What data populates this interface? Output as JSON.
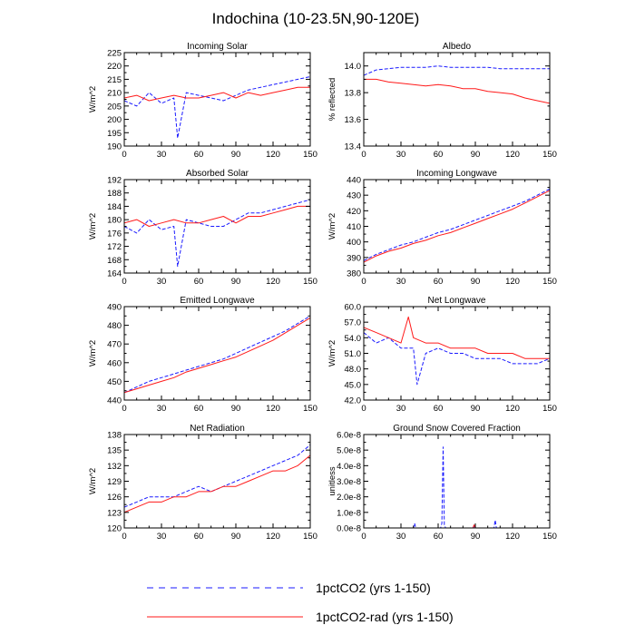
{
  "figure": {
    "title": "Indochina (10-23.5N,90-120E)"
  },
  "legend": [
    {
      "label": "1pctCO2 (yrs 1-150)",
      "color": "#1a1aff",
      "style": "dashed"
    },
    {
      "label": "1pctCO2-rad (yrs 1-150)",
      "color": "#ff1a1a",
      "style": "solid"
    }
  ],
  "chart_data": [
    {
      "type": "line",
      "title": "Incoming Solar",
      "ylabel": "W/m^2",
      "xlim": [
        0,
        150
      ],
      "ylim": [
        190,
        225
      ],
      "xticks": [
        0,
        30,
        60,
        90,
        120,
        150
      ],
      "yticks": [
        190,
        195,
        200,
        205,
        210,
        215,
        220,
        225
      ],
      "ytick_labels": [
        "190",
        "195",
        "200",
        "205",
        "210",
        "215",
        "220",
        "225"
      ],
      "series": [
        {
          "name": "1pctCO2 (yrs 1-150)",
          "x": [
            0,
            10,
            20,
            30,
            40,
            43,
            50,
            60,
            70,
            80,
            90,
            100,
            110,
            120,
            130,
            140,
            150
          ],
          "values": [
            207,
            205,
            210,
            206,
            208,
            193,
            210,
            209,
            208,
            207,
            209,
            211,
            212,
            213,
            214,
            215,
            216
          ]
        },
        {
          "name": "1pctCO2-rad (yrs 1-150)",
          "x": [
            0,
            10,
            20,
            30,
            40,
            50,
            60,
            70,
            80,
            90,
            100,
            110,
            120,
            130,
            140,
            150
          ],
          "values": [
            208,
            209,
            207,
            208,
            209,
            208,
            208,
            209,
            210,
            208,
            210,
            209,
            210,
            211,
            212,
            212
          ]
        }
      ]
    },
    {
      "type": "line",
      "title": "Albedo",
      "ylabel": "% reflected",
      "xlim": [
        0,
        150
      ],
      "ylim": [
        13.4,
        14.1
      ],
      "xticks": [
        0,
        30,
        60,
        90,
        120,
        150
      ],
      "yticks": [
        13.4,
        13.6,
        13.8,
        14.0
      ],
      "ytick_labels": [
        "13.4",
        "13.6",
        "13.8",
        "14.0"
      ],
      "series": [
        {
          "name": "1pctCO2 (yrs 1-150)",
          "x": [
            0,
            10,
            20,
            30,
            40,
            50,
            60,
            70,
            80,
            90,
            100,
            110,
            120,
            130,
            140,
            150
          ],
          "values": [
            13.93,
            13.97,
            13.98,
            13.99,
            13.99,
            13.99,
            14.0,
            13.99,
            13.99,
            13.99,
            13.99,
            13.98,
            13.98,
            13.98,
            13.98,
            13.98
          ]
        },
        {
          "name": "1pctCO2-rad (yrs 1-150)",
          "x": [
            0,
            10,
            20,
            30,
            40,
            50,
            60,
            70,
            80,
            90,
            100,
            110,
            120,
            130,
            140,
            150
          ],
          "values": [
            13.9,
            13.9,
            13.88,
            13.87,
            13.86,
            13.85,
            13.86,
            13.85,
            13.83,
            13.83,
            13.81,
            13.8,
            13.79,
            13.76,
            13.74,
            13.72
          ]
        }
      ]
    },
    {
      "type": "line",
      "title": "Absorbed Solar",
      "ylabel": "W/m^2",
      "xlim": [
        0,
        150
      ],
      "ylim": [
        164,
        192
      ],
      "xticks": [
        0,
        30,
        60,
        90,
        120,
        150
      ],
      "yticks": [
        164,
        168,
        172,
        176,
        180,
        184,
        188,
        192
      ],
      "ytick_labels": [
        "164",
        "168",
        "172",
        "176",
        "180",
        "184",
        "188",
        "192"
      ],
      "series": [
        {
          "name": "1pctCO2 (yrs 1-150)",
          "x": [
            0,
            10,
            20,
            30,
            40,
            43,
            50,
            60,
            70,
            80,
            90,
            100,
            110,
            120,
            130,
            140,
            150
          ],
          "values": [
            178,
            176,
            180,
            177,
            178,
            166,
            180,
            179,
            178,
            178,
            180,
            182,
            182,
            183,
            184,
            185,
            186
          ]
        },
        {
          "name": "1pctCO2-rad (yrs 1-150)",
          "x": [
            0,
            10,
            20,
            30,
            40,
            50,
            60,
            70,
            80,
            90,
            100,
            110,
            120,
            130,
            140,
            150
          ],
          "values": [
            179,
            180,
            178,
            179,
            180,
            179,
            179,
            180,
            181,
            179,
            181,
            181,
            182,
            183,
            184,
            184
          ]
        }
      ]
    },
    {
      "type": "line",
      "title": "Incoming Longwave",
      "ylabel": "W/m^2",
      "xlim": [
        0,
        150
      ],
      "ylim": [
        380,
        440
      ],
      "xticks": [
        0,
        30,
        60,
        90,
        120,
        150
      ],
      "yticks": [
        380,
        390,
        400,
        410,
        420,
        430,
        440
      ],
      "ytick_labels": [
        "380",
        "390",
        "400",
        "410",
        "420",
        "430",
        "440"
      ],
      "series": [
        {
          "name": "1pctCO2 (yrs 1-150)",
          "x": [
            0,
            10,
            20,
            30,
            40,
            50,
            60,
            70,
            80,
            90,
            100,
            110,
            120,
            130,
            140,
            150
          ],
          "values": [
            388,
            392,
            395,
            398,
            400,
            403,
            406,
            408,
            411,
            414,
            417,
            420,
            423,
            426,
            430,
            434
          ]
        },
        {
          "name": "1pctCO2-rad (yrs 1-150)",
          "x": [
            0,
            10,
            20,
            30,
            40,
            50,
            60,
            70,
            80,
            90,
            100,
            110,
            120,
            130,
            140,
            150
          ],
          "values": [
            387,
            391,
            394,
            396,
            399,
            401,
            404,
            406,
            409,
            412,
            415,
            418,
            421,
            425,
            429,
            433
          ]
        }
      ]
    },
    {
      "type": "line",
      "title": "Emitted Longwave",
      "ylabel": "W/m^2",
      "xlim": [
        0,
        150
      ],
      "ylim": [
        440,
        490
      ],
      "xticks": [
        0,
        30,
        60,
        90,
        120,
        150
      ],
      "yticks": [
        440,
        450,
        460,
        470,
        480,
        490
      ],
      "ytick_labels": [
        "440",
        "450",
        "460",
        "470",
        "480",
        "490"
      ],
      "series": [
        {
          "name": "1pctCO2 (yrs 1-150)",
          "x": [
            0,
            10,
            20,
            30,
            40,
            50,
            60,
            70,
            80,
            90,
            100,
            110,
            120,
            130,
            140,
            150
          ],
          "values": [
            444,
            447,
            450,
            452,
            454,
            456,
            458,
            460,
            462,
            465,
            468,
            471,
            474,
            477,
            481,
            485
          ]
        },
        {
          "name": "1pctCO2-rad (yrs 1-150)",
          "x": [
            0,
            10,
            20,
            30,
            40,
            50,
            60,
            70,
            80,
            90,
            100,
            110,
            120,
            130,
            140,
            150
          ],
          "values": [
            444,
            446,
            448,
            450,
            452,
            455,
            457,
            459,
            461,
            463,
            466,
            469,
            472,
            476,
            480,
            484
          ]
        }
      ]
    },
    {
      "type": "line",
      "title": "Net Longwave",
      "ylabel": "W/m^2",
      "xlim": [
        0,
        150
      ],
      "ylim": [
        42,
        60
      ],
      "xticks": [
        0,
        30,
        60,
        90,
        120,
        150
      ],
      "yticks": [
        42,
        45,
        48,
        51,
        54,
        57,
        60
      ],
      "ytick_labels": [
        "42.0",
        "45.0",
        "48.0",
        "51.0",
        "54.0",
        "57.0",
        "60.0"
      ],
      "series": [
        {
          "name": "1pctCO2 (yrs 1-150)",
          "x": [
            0,
            10,
            20,
            30,
            40,
            43,
            50,
            60,
            70,
            80,
            90,
            100,
            110,
            120,
            130,
            140,
            150
          ],
          "values": [
            55,
            53,
            54,
            52,
            52,
            45,
            51,
            52,
            51,
            51,
            50,
            50,
            50,
            49,
            49,
            49,
            50
          ]
        },
        {
          "name": "1pctCO2-rad (yrs 1-150)",
          "x": [
            0,
            10,
            20,
            30,
            36,
            40,
            50,
            60,
            70,
            80,
            90,
            100,
            110,
            120,
            130,
            140,
            150
          ],
          "values": [
            56,
            55,
            54,
            53,
            58,
            54,
            53,
            53,
            52,
            52,
            52,
            51,
            51,
            51,
            50,
            50,
            50
          ]
        }
      ]
    },
    {
      "type": "line",
      "title": "Net Radiation",
      "ylabel": "W/m^2",
      "xlim": [
        0,
        150
      ],
      "ylim": [
        120,
        138
      ],
      "xticks": [
        0,
        30,
        60,
        90,
        120,
        150
      ],
      "yticks": [
        120,
        123,
        126,
        129,
        132,
        135,
        138
      ],
      "ytick_labels": [
        "120",
        "123",
        "126",
        "129",
        "132",
        "135",
        "138"
      ],
      "series": [
        {
          "name": "1pctCO2 (yrs 1-150)",
          "x": [
            0,
            10,
            20,
            30,
            40,
            50,
            60,
            70,
            80,
            90,
            100,
            110,
            120,
            130,
            140,
            150
          ],
          "values": [
            124,
            125,
            126,
            126,
            126,
            127,
            128,
            127,
            128,
            129,
            130,
            131,
            132,
            133,
            134,
            136
          ]
        },
        {
          "name": "1pctCO2-rad (yrs 1-150)",
          "x": [
            0,
            10,
            20,
            30,
            40,
            50,
            60,
            70,
            80,
            90,
            100,
            110,
            120,
            130,
            140,
            150
          ],
          "values": [
            123,
            124,
            125,
            125,
            126,
            126,
            127,
            127,
            128,
            128,
            129,
            130,
            131,
            131,
            132,
            134
          ]
        }
      ]
    },
    {
      "type": "line",
      "title": "Ground Snow Covered Fraction",
      "ylabel": "unitless",
      "xlim": [
        0,
        150
      ],
      "ylim": [
        0,
        6e-08
      ],
      "xticks": [
        0,
        30,
        60,
        90,
        120,
        150
      ],
      "yticks": [
        0,
        1e-08,
        2e-08,
        3e-08,
        4e-08,
        5e-08,
        6e-08
      ],
      "ytick_labels": [
        "0.0e-8",
        "1.0e-8",
        "2.0e-8",
        "3.0e-8",
        "4.0e-8",
        "5.0e-8",
        "6.0e-8"
      ],
      "series": [
        {
          "name": "1pctCO2 (yrs 1-150)",
          "x": [
            0,
            40,
            41,
            42,
            62,
            63,
            64,
            65,
            66,
            88,
            89,
            90,
            105,
            106,
            107,
            150
          ],
          "values": [
            0,
            0,
            3e-09,
            0,
            0,
            3e-09,
            5.2e-08,
            2e-09,
            0,
            0,
            1e-09,
            0,
            0,
            5e-09,
            0,
            0
          ]
        },
        {
          "name": "1pctCO2-rad (yrs 1-150)",
          "x": [
            0,
            88,
            89,
            90,
            150
          ],
          "values": [
            0,
            0,
            2e-09,
            0,
            0
          ]
        }
      ]
    }
  ]
}
